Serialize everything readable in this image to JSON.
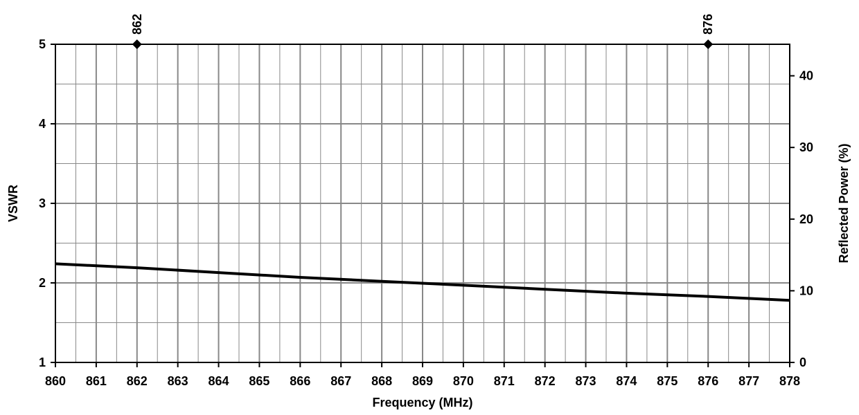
{
  "chart_data": {
    "type": "line",
    "xlabel": "Frequency (MHz)",
    "ylabel": "VSWR",
    "y2label": "Reflected Power (%)",
    "xlim": [
      860,
      878
    ],
    "ylim": [
      1,
      5
    ],
    "y2lim": [
      0,
      44.4
    ],
    "x_ticks": [
      "860",
      "861",
      "862",
      "863",
      "864",
      "865",
      "866",
      "867",
      "868",
      "869",
      "870",
      "871",
      "872",
      "873",
      "874",
      "875",
      "876",
      "877",
      "878"
    ],
    "y_ticks": [
      "1",
      "2",
      "3",
      "4",
      "5"
    ],
    "y2_ticks": [
      "0",
      "10",
      "20",
      "30",
      "40"
    ],
    "grid": true,
    "series": [
      {
        "x": [
          860,
          862,
          864,
          866,
          868,
          870,
          872,
          874,
          876,
          878
        ],
        "y": [
          2.24,
          2.19,
          2.13,
          2.07,
          2.02,
          1.97,
          1.92,
          1.87,
          1.83,
          1.78
        ]
      }
    ],
    "markers": [
      {
        "x": 862,
        "y": 5,
        "label": "862"
      },
      {
        "x": 876,
        "y": 5,
        "label": "876"
      }
    ],
    "colors": {
      "line": "#000000",
      "grid": "#888888",
      "axis": "#000000"
    }
  }
}
